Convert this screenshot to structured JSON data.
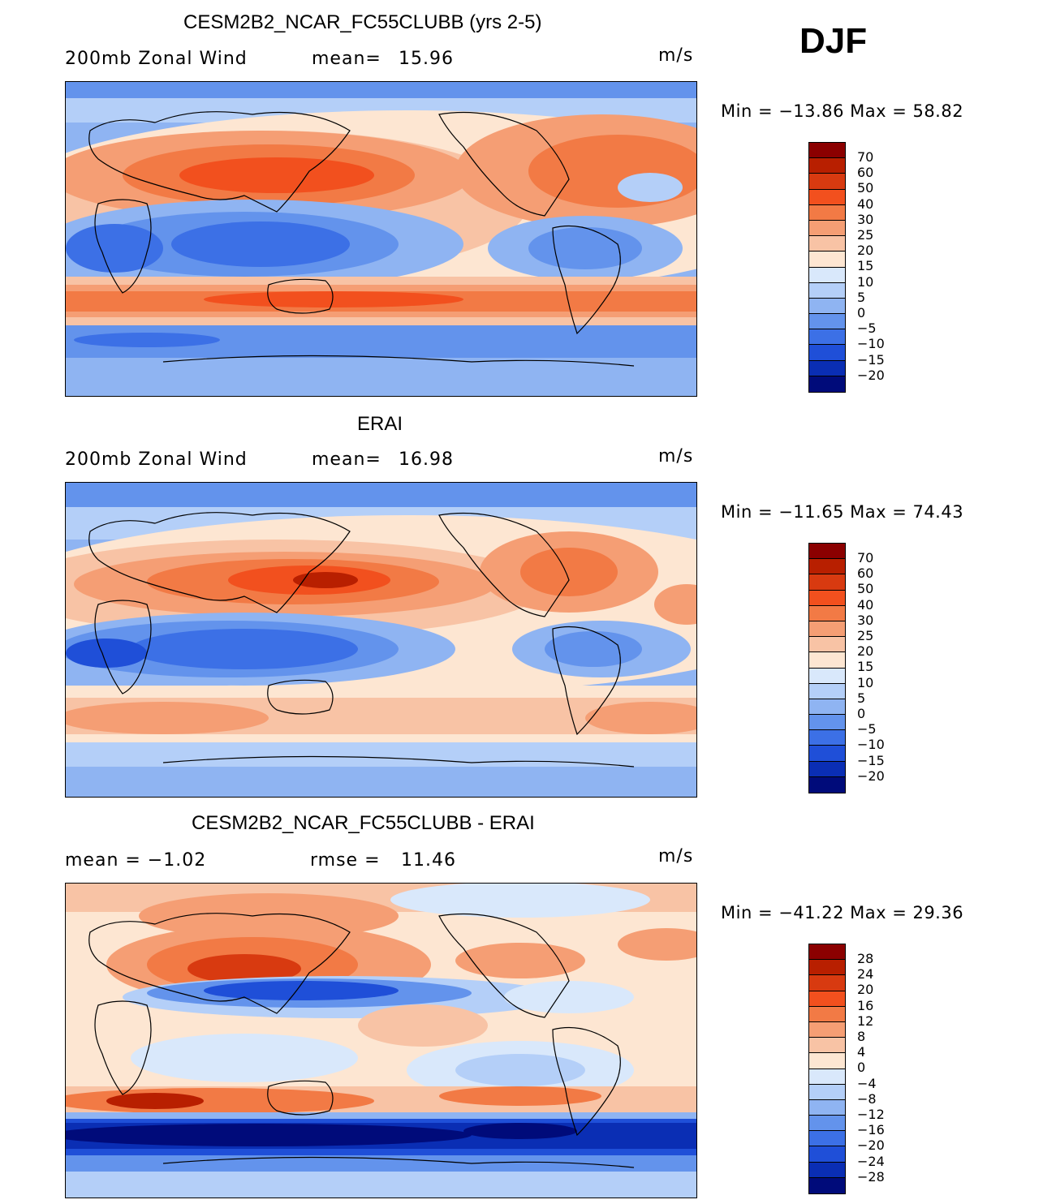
{
  "season": "DJF",
  "units": "m/s",
  "panels": [
    {
      "id": "model",
      "title": "CESM2B2_NCAR_FC55CLUBB (yrs 2-5)",
      "left_label": "200mb Zonal Wind",
      "stat_label": "mean=",
      "stat_value": "15.96",
      "minmax": "Min = −13.86 Max =   58.82",
      "colorbar_labels": [
        "70",
        "60",
        "50",
        "40",
        "30",
        "25",
        "20",
        "15",
        "10",
        "5",
        "0",
        "−5",
        "−10",
        "−15",
        "−20"
      ]
    },
    {
      "id": "obs",
      "title": "ERAI",
      "left_label": "200mb Zonal Wind",
      "stat_label": "mean=",
      "stat_value": "16.98",
      "minmax": "Min = −11.65 Max =   74.43",
      "colorbar_labels": [
        "70",
        "60",
        "50",
        "40",
        "30",
        "25",
        "20",
        "15",
        "10",
        "5",
        "0",
        "−5",
        "−10",
        "−15",
        "−20"
      ]
    },
    {
      "id": "diff",
      "title": "CESM2B2_NCAR_FC55CLUBB - ERAI",
      "left_label": "mean =   −1.02",
      "stat_label": "rmse =",
      "stat_value": "11.46",
      "minmax": "Min = −41.22 Max =   29.36",
      "colorbar_labels": [
        "28",
        "24",
        "20",
        "16",
        "12",
        "8",
        "4",
        "0",
        "−4",
        "−8",
        "−12",
        "−16",
        "−20",
        "−24",
        "−28"
      ]
    }
  ],
  "colors": {
    "scale": [
      "#8b0000",
      "#b81f00",
      "#d83a10",
      "#f2501e",
      "#f27a45",
      "#f59e74",
      "#f8c3a5",
      "#fde6d2",
      "#d9e8fb",
      "#b4cff8",
      "#8fb4f2",
      "#6393ec",
      "#3c70e6",
      "#1f4fd8",
      "#0a2eb4",
      "#000b7a"
    ],
    "coast": "#000000"
  }
}
